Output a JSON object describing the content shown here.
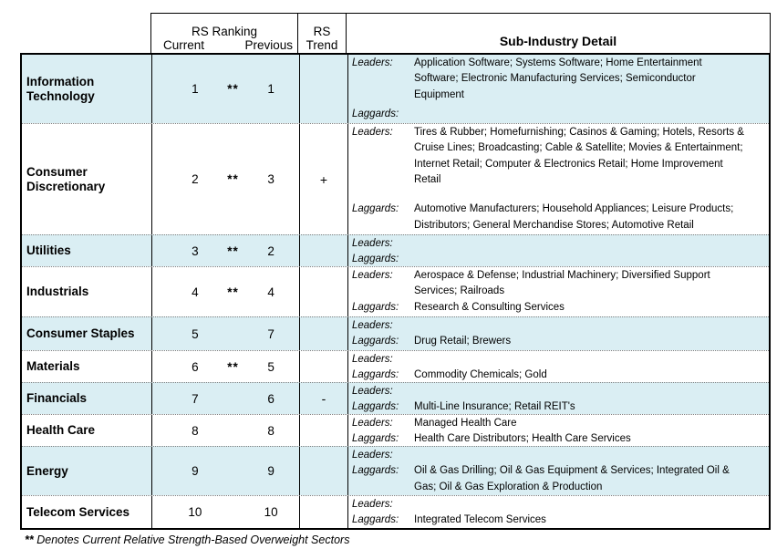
{
  "header": {
    "rs_ranking": "RS Ranking",
    "current": "Current",
    "previous": "Previous",
    "rs_trend_line1": "RS",
    "rs_trend_line2": "Trend",
    "sub_industry": "Sub-Industry Detail"
  },
  "labels": {
    "leaders": "Leaders:",
    "laggards": "Laggards:"
  },
  "colors": {
    "row_highlight": "#daeef3",
    "border": "#000000",
    "row_divider": "#7f7f7f"
  },
  "footnote": {
    "marker": "**",
    "text": "Denotes Current Relative Strength-Based Overweight Sectors"
  },
  "table": {
    "rows": [
      {
        "sector": "Information Technology",
        "current": "1",
        "overweight_marker": "**",
        "previous": "1",
        "trend": "",
        "leaders": "Application Software; Systems Software; Home Entertainment Software; Electronic Manufacturing Services; Semiconductor Equipment",
        "laggards": ""
      },
      {
        "sector": "Consumer Discretionary",
        "current": "2",
        "overweight_marker": "**",
        "previous": "3",
        "trend": "+",
        "leaders": "Tires & Rubber; Homefurnishing; Casinos & Gaming; Hotels, Resorts & Cruise Lines; Broadcasting; Cable & Satellite; Movies & Entertainment; Internet Retail; Computer & Electronics Retail; Home Improvement Retail",
        "laggards": "Automotive Manufacturers; Household Appliances; Leisure Products; Distributors; General Merchandise Stores; Automotive Retail"
      },
      {
        "sector": "Utilities",
        "current": "3",
        "overweight_marker": "**",
        "previous": "2",
        "trend": "",
        "leaders": "",
        "laggards": ""
      },
      {
        "sector": "Industrials",
        "current": "4",
        "overweight_marker": "**",
        "previous": "4",
        "trend": "",
        "leaders": "Aerospace & Defense; Industrial Machinery; Diversified Support Services; Railroads",
        "laggards": "Research & Consulting Services"
      },
      {
        "sector": "Consumer Staples",
        "current": "5",
        "overweight_marker": "",
        "previous": "7",
        "trend": "",
        "leaders": "",
        "laggards": "Drug Retail; Brewers"
      },
      {
        "sector": "Materials",
        "current": "6",
        "overweight_marker": "**",
        "previous": "5",
        "trend": "",
        "leaders": "",
        "laggards": "Commodity Chemicals; Gold"
      },
      {
        "sector": "Financials",
        "current": "7",
        "overweight_marker": "",
        "previous": "6",
        "trend": "-",
        "leaders": "",
        "laggards": "Multi-Line Insurance; Retail REIT's"
      },
      {
        "sector": "Health Care",
        "current": "8",
        "overweight_marker": "",
        "previous": "8",
        "trend": "",
        "leaders": "Managed Health Care",
        "laggards": "Health Care Distributors; Health Care Services"
      },
      {
        "sector": "Energy",
        "current": "9",
        "overweight_marker": "",
        "previous": "9",
        "trend": "",
        "leaders": "",
        "laggards": "Oil & Gas Drilling; Oil & Gas Equipment & Services; Integrated Oil & Gas; Oil & Gas Exploration & Production"
      },
      {
        "sector": "Telecom Services",
        "current": "10",
        "overweight_marker": "",
        "previous": "10",
        "trend": "",
        "leaders": "",
        "laggards": "Integrated Telecom Services"
      }
    ]
  }
}
